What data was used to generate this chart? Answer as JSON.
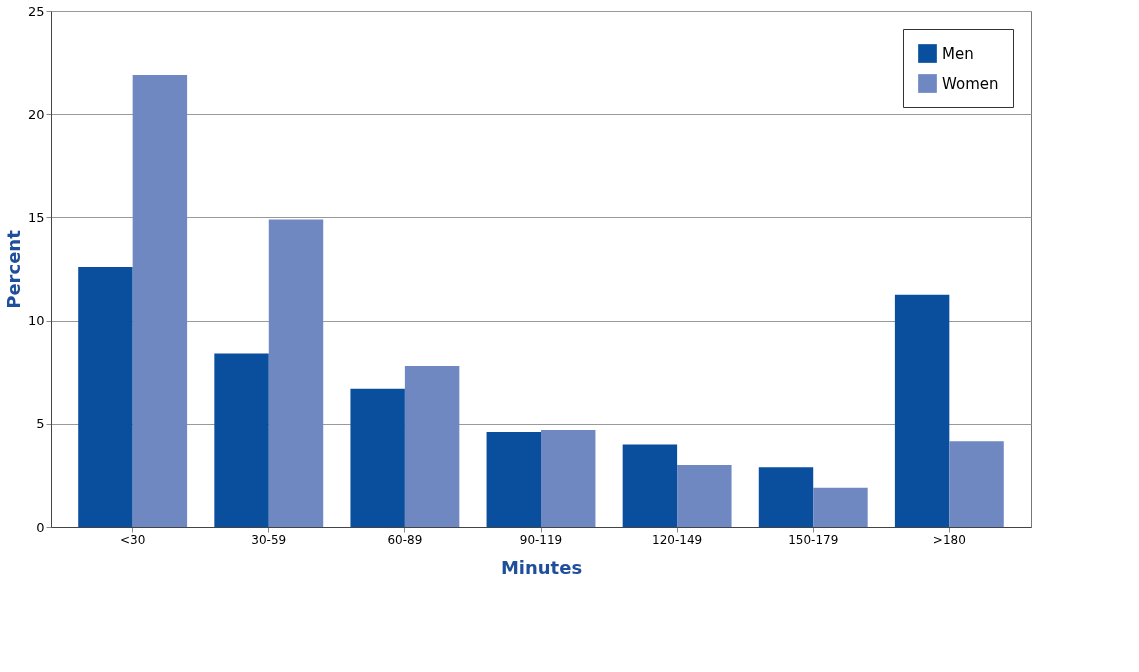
{
  "chart_data": {
    "type": "bar",
    "xlabel": "Minutes",
    "ylabel": "Percent",
    "categories": [
      "<30",
      "30-59",
      "60-89",
      "90-119",
      "120-149",
      "150-179",
      ">180"
    ],
    "series": [
      {
        "name": "Men",
        "color": "#0a4f9e",
        "values": [
          12.6,
          8.4,
          6.7,
          4.6,
          4.0,
          2.9,
          11.25
        ]
      },
      {
        "name": "Women",
        "color": "#6f88c2",
        "values": [
          21.9,
          14.9,
          7.8,
          4.7,
          3.0,
          1.9,
          4.15
        ]
      }
    ],
    "ylim": [
      0,
      25
    ],
    "yticks": [
      0,
      5,
      10,
      15,
      20,
      25
    ],
    "grid": "y",
    "legend": "top right"
  }
}
